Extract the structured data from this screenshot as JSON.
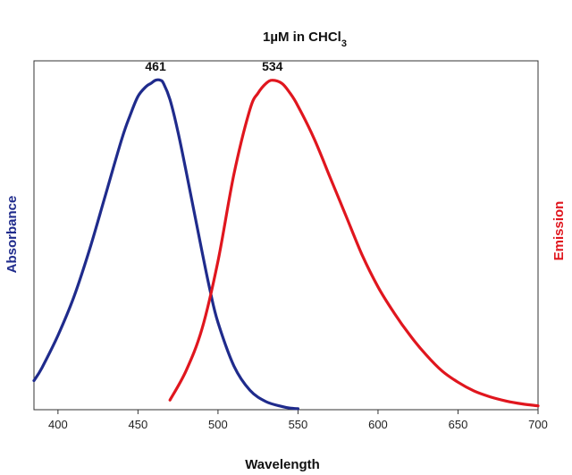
{
  "chart_data": {
    "type": "line",
    "title_main": "1µM in CHCl",
    "title_sub": "3",
    "xlabel": "Wavelength",
    "ylabel_left": "Absorbance",
    "ylabel_right": "Emission",
    "xlim": [
      385,
      700
    ],
    "ylim": [
      0,
      1.08
    ],
    "xticks": [
      400,
      450,
      500,
      550,
      600,
      650,
      700
    ],
    "grid": false,
    "colors": {
      "absorbance": "#1f2b8c",
      "emission": "#e0161e"
    },
    "series": [
      {
        "name": "Absorbance",
        "x": [
          385,
          390,
          400,
          410,
          420,
          430,
          440,
          445,
          450,
          455,
          458,
          461,
          464,
          466,
          470,
          475,
          480,
          490,
          495,
          500,
          510,
          520,
          530,
          540,
          545,
          550
        ],
        "y": [
          0.09,
          0.13,
          0.23,
          0.35,
          0.5,
          0.67,
          0.84,
          0.91,
          0.97,
          1.0,
          1.01,
          1.02,
          1.02,
          1.01,
          0.96,
          0.86,
          0.74,
          0.49,
          0.37,
          0.27,
          0.135,
          0.06,
          0.025,
          0.01,
          0.005,
          0.003
        ]
      },
      {
        "name": "Emission",
        "x": [
          470,
          480,
          490,
          500,
          510,
          520,
          525,
          530,
          534,
          540,
          545,
          550,
          560,
          570,
          580,
          590,
          600,
          610,
          620,
          630,
          640,
          650,
          660,
          670,
          680,
          690,
          700
        ],
        "y": [
          0.03,
          0.12,
          0.25,
          0.46,
          0.73,
          0.93,
          0.98,
          1.01,
          1.02,
          1.01,
          0.98,
          0.94,
          0.84,
          0.72,
          0.6,
          0.48,
          0.38,
          0.3,
          0.23,
          0.17,
          0.12,
          0.085,
          0.058,
          0.04,
          0.027,
          0.018,
          0.012
        ]
      }
    ],
    "annotations": [
      {
        "text": "461",
        "x": 461,
        "y": 1.06
      },
      {
        "text": "534",
        "x": 534,
        "y": 1.06
      }
    ]
  }
}
